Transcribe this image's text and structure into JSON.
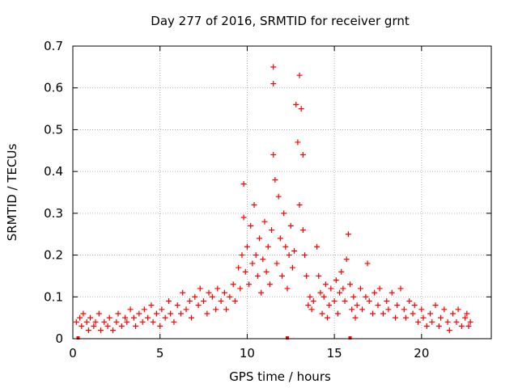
{
  "chart_data": {
    "type": "scatter",
    "title": "Day 277 of 2016, SRMTID for receiver grnt",
    "xlabel": "GPS time / hours",
    "ylabel": "SRMTID / TECUs",
    "xlim": [
      0,
      24
    ],
    "ylim": [
      0,
      0.7
    ],
    "x_ticks": [
      0,
      5,
      10,
      15,
      20
    ],
    "x_tick_labels": [
      "0",
      "5",
      "10",
      "15",
      "20"
    ],
    "y_ticks": [
      0,
      0.1,
      0.2,
      0.3,
      0.4,
      0.5,
      0.6,
      0.7
    ],
    "y_tick_labels": [
      "0",
      "0.1",
      "0.2",
      "0.3",
      "0.4",
      "0.5",
      "0.6",
      "0.7"
    ],
    "grid": true,
    "marker": "+",
    "color": "#ff0000",
    "series": [
      {
        "name": "SRMTID",
        "points": [
          [
            0.2,
            0.04
          ],
          [
            0.4,
            0.05
          ],
          [
            0.5,
            0.03
          ],
          [
            0.6,
            0.06
          ],
          [
            0.8,
            0.04
          ],
          [
            0.9,
            0.02
          ],
          [
            1.0,
            0.05
          ],
          [
            1.2,
            0.03
          ],
          [
            1.3,
            0.04
          ],
          [
            1.5,
            0.06
          ],
          [
            1.6,
            0.02
          ],
          [
            1.8,
            0.04
          ],
          [
            2.0,
            0.03
          ],
          [
            2.1,
            0.05
          ],
          [
            2.3,
            0.02
          ],
          [
            2.5,
            0.04
          ],
          [
            2.6,
            0.06
          ],
          [
            2.8,
            0.03
          ],
          [
            3.0,
            0.05
          ],
          [
            3.1,
            0.04
          ],
          [
            3.3,
            0.07
          ],
          [
            3.5,
            0.05
          ],
          [
            3.6,
            0.03
          ],
          [
            3.8,
            0.06
          ],
          [
            4.0,
            0.04
          ],
          [
            4.1,
            0.07
          ],
          [
            4.3,
            0.05
          ],
          [
            4.5,
            0.08
          ],
          [
            4.6,
            0.04
          ],
          [
            4.8,
            0.06
          ],
          [
            5.0,
            0.03
          ],
          [
            5.1,
            0.07
          ],
          [
            5.3,
            0.05
          ],
          [
            5.5,
            0.09
          ],
          [
            5.6,
            0.06
          ],
          [
            5.8,
            0.04
          ],
          [
            6.0,
            0.08
          ],
          [
            6.2,
            0.06
          ],
          [
            6.3,
            0.11
          ],
          [
            6.5,
            0.07
          ],
          [
            6.7,
            0.09
          ],
          [
            6.8,
            0.05
          ],
          [
            7.0,
            0.1
          ],
          [
            7.2,
            0.08
          ],
          [
            7.3,
            0.12
          ],
          [
            7.5,
            0.09
          ],
          [
            7.7,
            0.06
          ],
          [
            7.8,
            0.11
          ],
          [
            8.0,
            0.1
          ],
          [
            8.2,
            0.07
          ],
          [
            8.3,
            0.12
          ],
          [
            8.5,
            0.09
          ],
          [
            8.7,
            0.11
          ],
          [
            8.8,
            0.07
          ],
          [
            9.0,
            0.1
          ],
          [
            9.2,
            0.13
          ],
          [
            9.3,
            0.09
          ],
          [
            9.5,
            0.17
          ],
          [
            9.6,
            0.12
          ],
          [
            9.7,
            0.2
          ],
          [
            9.8,
            0.29
          ],
          [
            9.8,
            0.37
          ],
          [
            9.9,
            0.16
          ],
          [
            10.0,
            0.22
          ],
          [
            10.1,
            0.13
          ],
          [
            10.2,
            0.27
          ],
          [
            10.3,
            0.18
          ],
          [
            10.4,
            0.32
          ],
          [
            10.5,
            0.2
          ],
          [
            10.6,
            0.15
          ],
          [
            10.7,
            0.24
          ],
          [
            10.8,
            0.11
          ],
          [
            10.9,
            0.19
          ],
          [
            11.0,
            0.28
          ],
          [
            11.1,
            0.16
          ],
          [
            11.2,
            0.22
          ],
          [
            11.3,
            0.13
          ],
          [
            11.4,
            0.26
          ],
          [
            11.5,
            0.65
          ],
          [
            11.5,
            0.61
          ],
          [
            11.5,
            0.44
          ],
          [
            11.6,
            0.38
          ],
          [
            11.7,
            0.18
          ],
          [
            11.8,
            0.34
          ],
          [
            11.9,
            0.24
          ],
          [
            12.0,
            0.15
          ],
          [
            12.1,
            0.3
          ],
          [
            12.2,
            0.22
          ],
          [
            12.3,
            0.12
          ],
          [
            12.4,
            0.2
          ],
          [
            12.5,
            0.27
          ],
          [
            12.6,
            0.17
          ],
          [
            12.7,
            0.21
          ],
          [
            12.8,
            0.56
          ],
          [
            12.9,
            0.47
          ],
          [
            13.0,
            0.32
          ],
          [
            13.0,
            0.63
          ],
          [
            13.1,
            0.55
          ],
          [
            13.2,
            0.44
          ],
          [
            13.2,
            0.26
          ],
          [
            13.3,
            0.2
          ],
          [
            13.4,
            0.15
          ],
          [
            13.5,
            0.08
          ],
          [
            13.6,
            0.1
          ],
          [
            13.7,
            0.07
          ],
          [
            13.8,
            0.09
          ],
          [
            14.0,
            0.22
          ],
          [
            14.1,
            0.15
          ],
          [
            14.2,
            0.11
          ],
          [
            14.3,
            0.06
          ],
          [
            14.4,
            0.1
          ],
          [
            14.5,
            0.13
          ],
          [
            14.6,
            0.05
          ],
          [
            14.7,
            0.08
          ],
          [
            14.8,
            0.12
          ],
          [
            15.0,
            0.09
          ],
          [
            15.1,
            0.14
          ],
          [
            15.2,
            0.06
          ],
          [
            15.3,
            0.11
          ],
          [
            15.4,
            0.16
          ],
          [
            15.5,
            0.12
          ],
          [
            15.6,
            0.09
          ],
          [
            15.7,
            0.19
          ],
          [
            15.8,
            0.25
          ],
          [
            15.9,
            0.13
          ],
          [
            16.0,
            0.07
          ],
          [
            16.1,
            0.1
          ],
          [
            16.2,
            0.05
          ],
          [
            16.3,
            0.08
          ],
          [
            16.5,
            0.12
          ],
          [
            16.6,
            0.07
          ],
          [
            16.8,
            0.1
          ],
          [
            16.9,
            0.18
          ],
          [
            17.0,
            0.09
          ],
          [
            17.2,
            0.06
          ],
          [
            17.3,
            0.11
          ],
          [
            17.5,
            0.08
          ],
          [
            17.6,
            0.12
          ],
          [
            17.8,
            0.06
          ],
          [
            18.0,
            0.09
          ],
          [
            18.1,
            0.07
          ],
          [
            18.3,
            0.11
          ],
          [
            18.5,
            0.05
          ],
          [
            18.6,
            0.08
          ],
          [
            18.8,
            0.12
          ],
          [
            19.0,
            0.07
          ],
          [
            19.1,
            0.05
          ],
          [
            19.3,
            0.09
          ],
          [
            19.5,
            0.06
          ],
          [
            19.6,
            0.08
          ],
          [
            19.8,
            0.04
          ],
          [
            20.0,
            0.07
          ],
          [
            20.1,
            0.05
          ],
          [
            20.3,
            0.03
          ],
          [
            20.5,
            0.06
          ],
          [
            20.6,
            0.04
          ],
          [
            20.8,
            0.08
          ],
          [
            21.0,
            0.03
          ],
          [
            21.1,
            0.05
          ],
          [
            21.3,
            0.07
          ],
          [
            21.5,
            0.04
          ],
          [
            21.6,
            0.02
          ],
          [
            21.8,
            0.06
          ],
          [
            22.0,
            0.04
          ],
          [
            22.1,
            0.07
          ],
          [
            22.3,
            0.03
          ],
          [
            22.5,
            0.05
          ],
          [
            22.6,
            0.06
          ],
          [
            22.7,
            0.03
          ],
          [
            22.8,
            0.04
          ]
        ]
      }
    ],
    "axis_markers_x": [
      0.3,
      12.3,
      15.9
    ]
  }
}
